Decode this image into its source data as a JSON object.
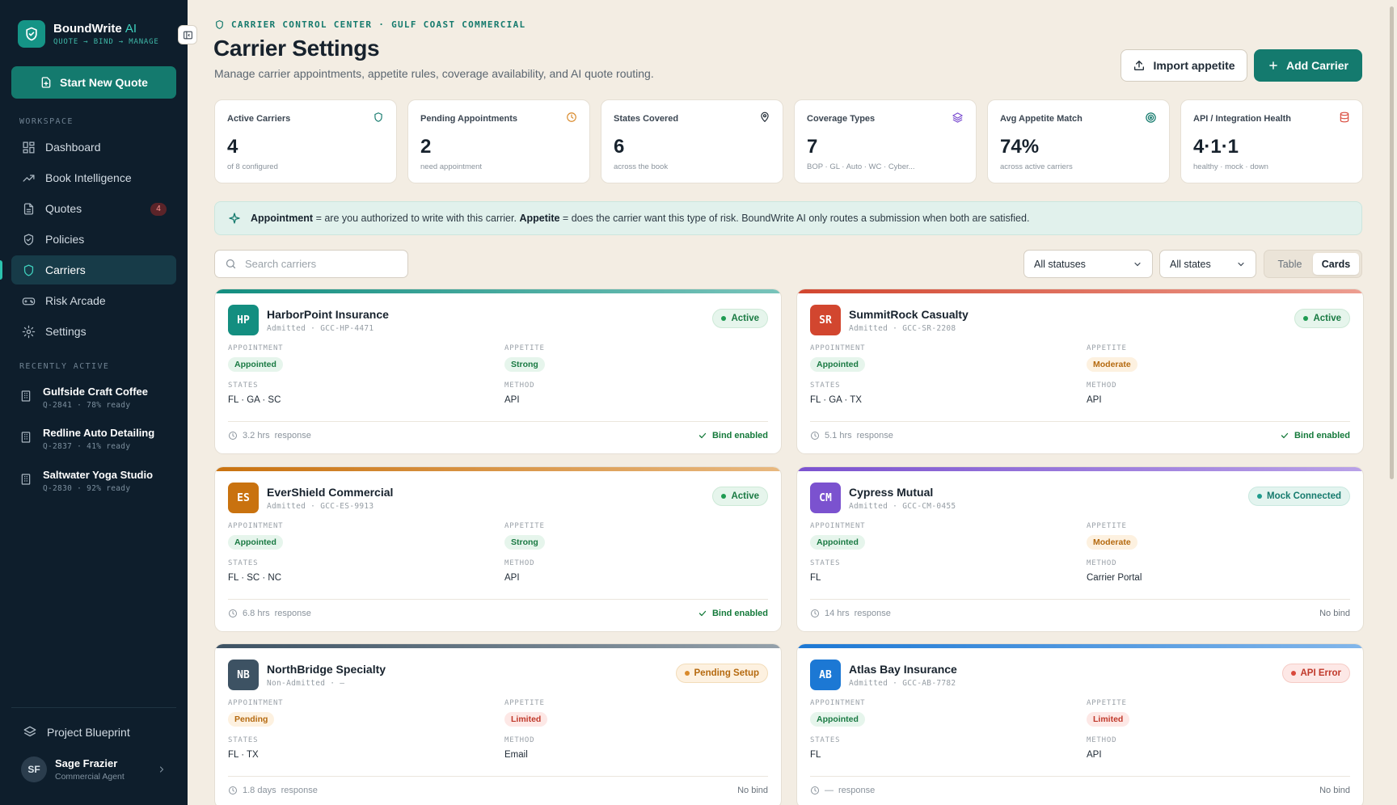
{
  "brand": {
    "name": "BoundWrite",
    "ai": "AI",
    "tagline": "QUOTE → BIND → MANAGE"
  },
  "sidebar": {
    "new_quote": "Start New Quote",
    "workspace_label": "WORKSPACE",
    "items": [
      {
        "label": "Dashboard",
        "icon": "dashboard-icon"
      },
      {
        "label": "Book Intelligence",
        "icon": "trending-icon"
      },
      {
        "label": "Quotes",
        "icon": "document-icon",
        "badge": "4"
      },
      {
        "label": "Policies",
        "icon": "shield-check-icon"
      },
      {
        "label": "Carriers",
        "icon": "shield-icon",
        "active": true
      },
      {
        "label": "Risk Arcade",
        "icon": "gamepad-icon"
      },
      {
        "label": "Settings",
        "icon": "gear-icon"
      }
    ],
    "recent_label": "RECENTLY ACTIVE",
    "recent": [
      {
        "title": "Gulfside Craft Coffee",
        "sub": "Q-2841 · 78% ready"
      },
      {
        "title": "Redline Auto Detailing",
        "sub": "Q-2837 · 41% ready"
      },
      {
        "title": "Saltwater Yoga Studio",
        "sub": "Q-2830 · 92% ready"
      }
    ],
    "blueprint": "Project Blueprint",
    "user": {
      "initials": "SF",
      "name": "Sage Frazier",
      "role": "Commercial Agent"
    }
  },
  "header": {
    "eyebrow": "CARRIER CONTROL CENTER · GULF COAST COMMERCIAL",
    "title": "Carrier Settings",
    "subtitle": "Manage carrier appointments, appetite rules, coverage availability, and AI quote routing.",
    "import_label": "Import appetite",
    "add_label": "Add Carrier"
  },
  "stats": [
    {
      "label": "Active Carriers",
      "value": "4",
      "sub": "of 8 configured",
      "icon": "shield-icon",
      "color": "#157a6d"
    },
    {
      "label": "Pending Appointments",
      "value": "2",
      "sub": "need appointment",
      "icon": "clock-icon",
      "color": "#d98a2b"
    },
    {
      "label": "States Covered",
      "value": "6",
      "sub": "across the book",
      "icon": "map-pin-icon",
      "color": "#17222d"
    },
    {
      "label": "Coverage Types",
      "value": "7",
      "sub": "BOP · GL · Auto · WC · Cyber...",
      "icon": "layers-icon",
      "color": "#7c4fd0"
    },
    {
      "label": "Avg Appetite Match",
      "value": "74%",
      "sub": "across active carriers",
      "icon": "target-icon",
      "color": "#157a6d"
    },
    {
      "label": "API / Integration Health",
      "value": "4·1·1",
      "sub": "healthy · mock · down",
      "icon": "database-icon",
      "color": "#d94a3d"
    }
  ],
  "banner": {
    "term1": "Appointment",
    "def1": "= are you authorized to write with this carrier.",
    "term2": "Appetite",
    "def2": "= does the carrier want this type of risk. BoundWrite AI only routes a submission when both are satisfied."
  },
  "toolbar": {
    "search_placeholder": "Search carriers",
    "status_filter": "All statuses",
    "state_filter": "All states",
    "view_table": "Table",
    "view_cards": "Cards"
  },
  "labels": {
    "appointment": "APPOINTMENT",
    "appetite": "APPETITE",
    "states": "STATES",
    "method": "METHOD",
    "response": "response"
  },
  "carriers": [
    {
      "initials": "HP",
      "name": "HarborPoint Insurance",
      "meta": "Admitted · GCC-HP-4471",
      "status": "Active",
      "appointment": "Appointed",
      "appetite": "Strong",
      "states": "FL · GA · SC",
      "method": "API",
      "response": "3.2 hrs",
      "bind": "Bind enabled",
      "color": "#138e80",
      "accent": "#1f9c8d"
    },
    {
      "initials": "SR",
      "name": "SummitRock Casualty",
      "meta": "Admitted · GCC-SR-2208",
      "status": "Active",
      "appointment": "Appointed",
      "appetite": "Moderate",
      "states": "FL · GA · TX",
      "method": "API",
      "response": "5.1 hrs",
      "bind": "Bind enabled",
      "color": "#d2462f",
      "accent": "#e05d47"
    },
    {
      "initials": "ES",
      "name": "EverShield Commercial",
      "meta": "Admitted · GCC-ES-9913",
      "status": "Active",
      "appointment": "Appointed",
      "appetite": "Strong",
      "states": "FL · SC · NC",
      "method": "API",
      "response": "6.8 hrs",
      "bind": "Bind enabled",
      "color": "#c9720f",
      "accent": "#d98a2b"
    },
    {
      "initials": "CM",
      "name": "Cypress Mutual",
      "meta": "Admitted · GCC-CM-0455",
      "status": "Mock Connected",
      "appointment": "Appointed",
      "appetite": "Moderate",
      "states": "FL",
      "method": "Carrier Portal",
      "response": "14 hrs",
      "bind": "No bind",
      "color": "#7b52cf",
      "accent": "#8a63d8"
    },
    {
      "initials": "NB",
      "name": "NorthBridge Specialty",
      "meta": "Non-Admitted · —",
      "status": "Pending Setup",
      "appointment": "Pending",
      "appetite": "Limited",
      "states": "FL · TX",
      "method": "Email",
      "response": "1.8 days",
      "bind": "No bind",
      "color": "#3d5263",
      "accent": "#4d6272"
    },
    {
      "initials": "AB",
      "name": "Atlas Bay Insurance",
      "meta": "Admitted · GCC-AB-7782",
      "status": "API Error",
      "appointment": "Appointed",
      "appetite": "Limited",
      "states": "FL",
      "method": "API",
      "response": "—",
      "bind": "No bind",
      "color": "#1c78d4",
      "accent": "#2f86dd"
    }
  ]
}
